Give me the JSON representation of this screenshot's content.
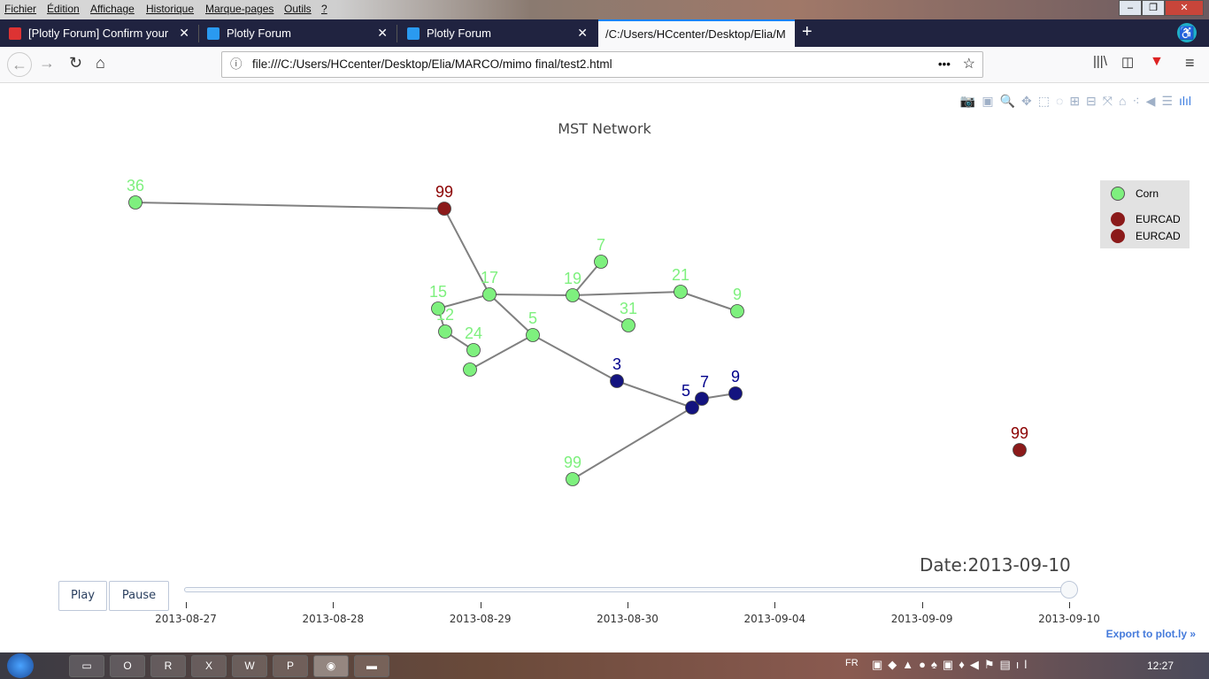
{
  "menu": [
    "Fichier",
    "Édition",
    "Affichage",
    "Historique",
    "Marque-pages",
    "Outils",
    "?"
  ],
  "tabs": [
    {
      "title": "[Plotly Forum] Confirm your ne",
      "icon": "gmail-icon"
    },
    {
      "title": "Plotly Forum",
      "icon": "plotly-icon"
    },
    {
      "title": "Plotly Forum",
      "icon": "plotly-icon"
    },
    {
      "title": "/C:/Users/HCcenter/Desktop/Elia/M",
      "active": true
    }
  ],
  "address": {
    "url": "file:///C:/Users/HCcenter/Desktop/Elia/MARCO/mimo final/test2.html"
  },
  "plot": {
    "title": "MST Network",
    "legend": [
      "Corn",
      "EURCAD",
      "EURCAD"
    ],
    "legend_colors": [
      "#7ef07e",
      "#8b1a1a",
      "#8b1a1a"
    ],
    "nodes": [
      {
        "label": "36",
        "group": "green"
      },
      {
        "label": "99",
        "group": "red"
      },
      {
        "label": "17",
        "group": "green"
      },
      {
        "label": "15",
        "group": "green"
      },
      {
        "label": "12",
        "group": "green"
      },
      {
        "label": "24",
        "group": "green"
      },
      {
        "label": "",
        "group": "green"
      },
      {
        "label": "5",
        "group": "green"
      },
      {
        "label": "19",
        "group": "green"
      },
      {
        "label": "7",
        "group": "green"
      },
      {
        "label": "31",
        "group": "green"
      },
      {
        "label": "21",
        "group": "green"
      },
      {
        "label": "9",
        "group": "green"
      },
      {
        "label": "3",
        "group": "blue"
      },
      {
        "label": "5",
        "group": "blue"
      },
      {
        "label": "7",
        "group": "blue"
      },
      {
        "label": "9",
        "group": "blue"
      },
      {
        "label": "99",
        "group": "green"
      },
      {
        "label": "99",
        "group": "red"
      }
    ],
    "colors": {
      "green": "#7ef07e",
      "red": "#8b1a1a",
      "blue": "#13137f",
      "green_text": "#7ef07e",
      "red_text": "#8b0000",
      "blue_text": "#00008b",
      "edge": "#808080"
    }
  },
  "slider": {
    "current_label": "Date:2013-09-10",
    "play": "Play",
    "pause": "Pause",
    "steps": [
      "2013-08-27",
      "2013-08-28",
      "2013-08-29",
      "2013-08-30",
      "2013-09-04",
      "2013-09-09",
      "2013-09-10"
    ],
    "selected_index": 6
  },
  "export_link": "Export to plot.ly »",
  "taskbar": {
    "lang": "FR",
    "time": "12:27"
  }
}
